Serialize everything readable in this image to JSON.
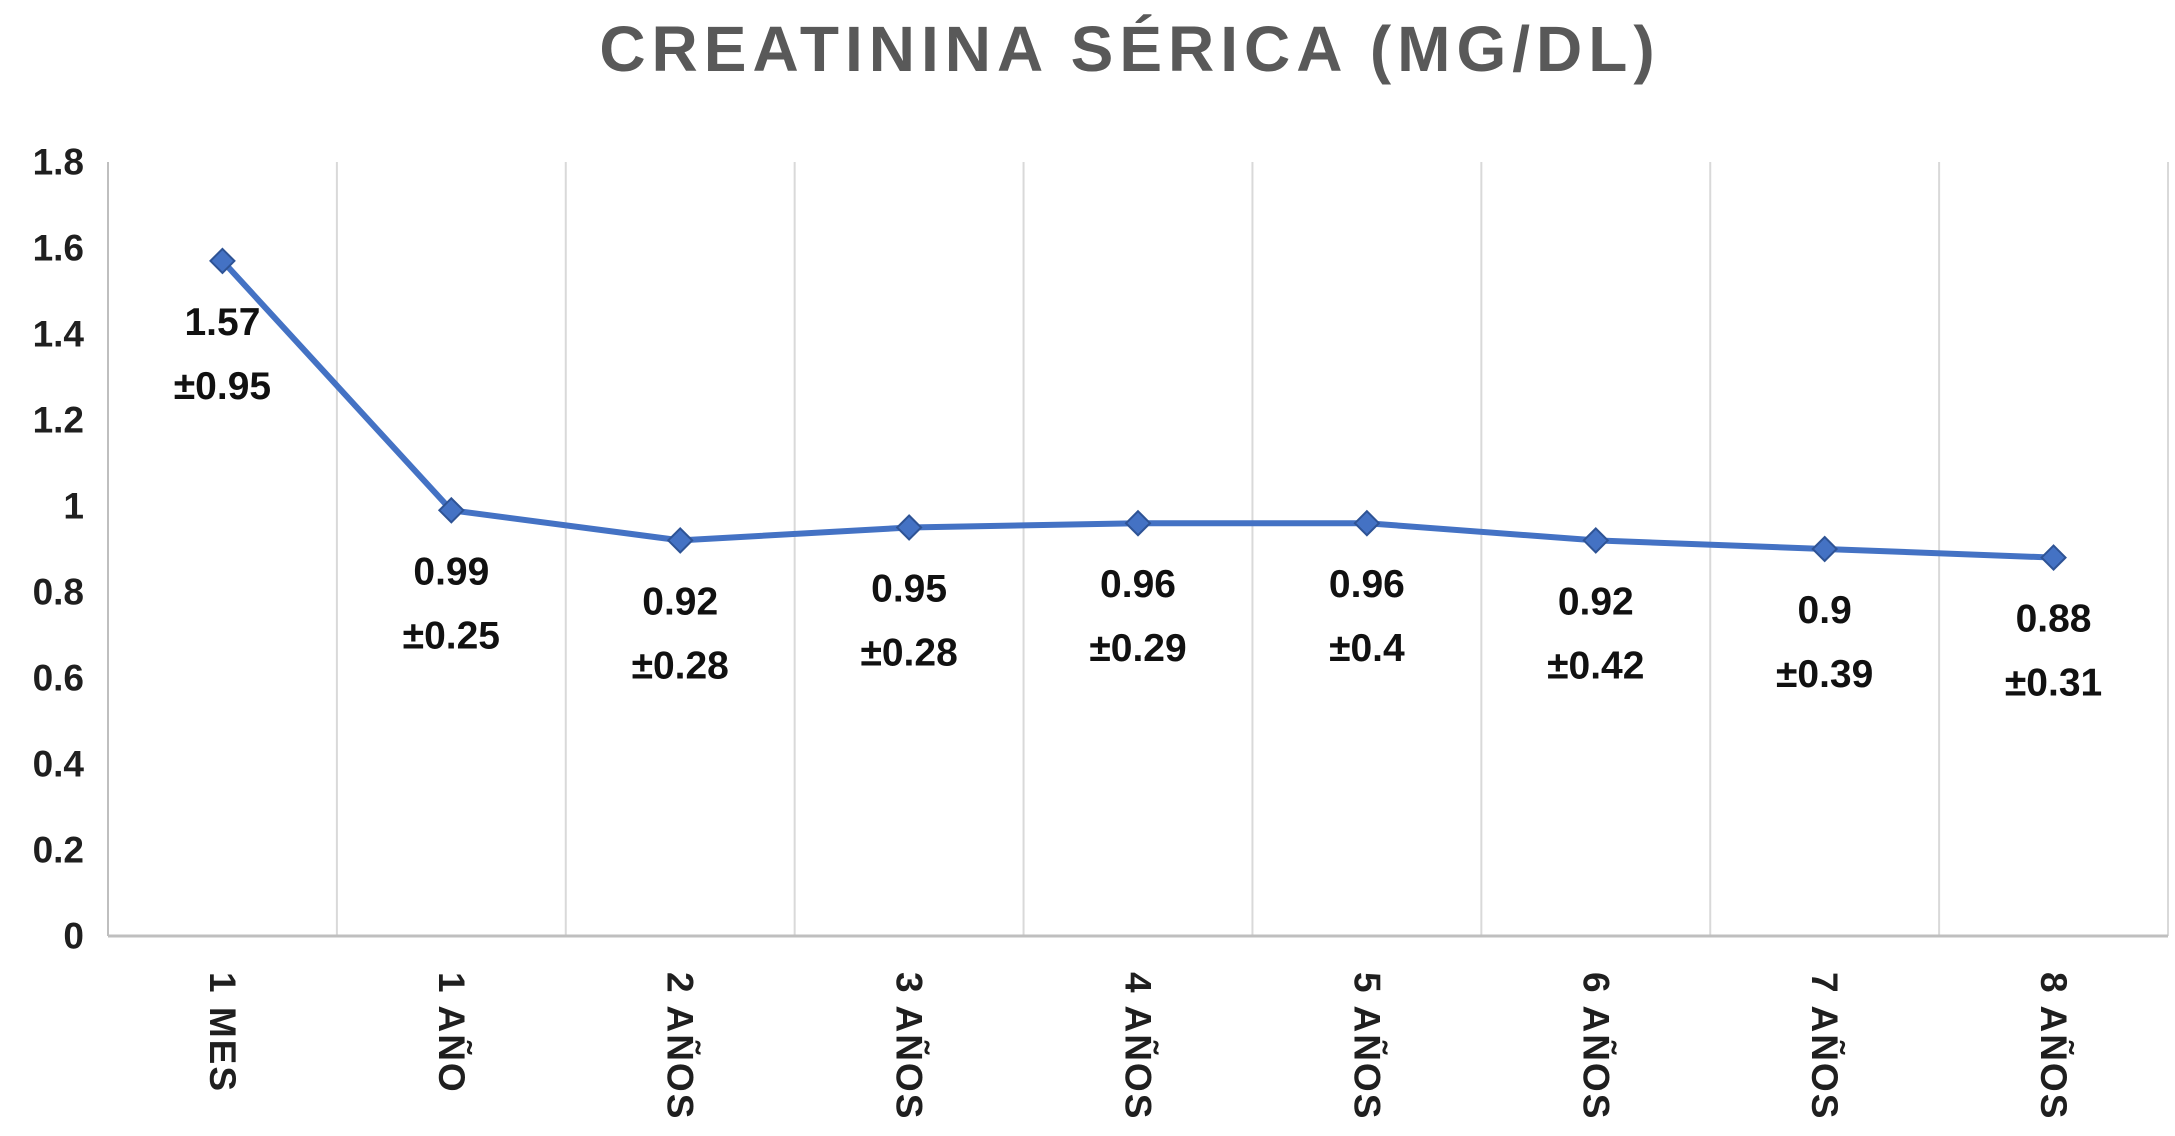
{
  "chart_data": {
    "type": "line",
    "title": "CREATININA SÉRICA (MG/DL)",
    "categories": [
      "1 MES",
      "1 AÑO",
      "2 AÑOS",
      "3 AÑOS",
      "4 AÑOS",
      "5 AÑOS",
      "6 AÑOS",
      "7 AÑOS",
      "8 AÑOS"
    ],
    "series": [
      {
        "name": "Creatinina sérica",
        "values": [
          1.57,
          0.99,
          0.92,
          0.95,
          0.96,
          0.96,
          0.92,
          0.9,
          0.88
        ],
        "sd": [
          0.95,
          0.25,
          0.28,
          0.28,
          0.29,
          0.4,
          0.42,
          0.39,
          0.31
        ]
      }
    ],
    "values": [
      1.57,
      0.99,
      0.92,
      0.95,
      0.96,
      0.96,
      0.92,
      0.9,
      0.88
    ],
    "point_labels": [
      [
        "1.57",
        "±0.95"
      ],
      [
        "0.99",
        "±0.25"
      ],
      [
        "0.92",
        "±0.28"
      ],
      [
        "0.95",
        "±0.28"
      ],
      [
        "0.96",
        "±0.29"
      ],
      [
        "0.96",
        "±0.4"
      ],
      [
        "0.92",
        "±0.42"
      ],
      [
        "0.9",
        "±0.39"
      ],
      [
        "0.88",
        "±0.31"
      ]
    ],
    "xlabel": "",
    "ylabel": "",
    "ylim": [
      0,
      1.8
    ],
    "y_ticks": [
      0,
      0.2,
      0.4,
      0.6,
      0.8,
      1,
      1.2,
      1.4,
      1.6,
      1.8
    ],
    "y_tick_labels": [
      "0",
      "0.2",
      "0.4",
      "0.6",
      "0.8",
      "1",
      "1.2",
      "1.4",
      "1.6",
      "1.8"
    ],
    "grid": "vertical-only",
    "legend": "none",
    "marker": "diamond",
    "x_label_rotation_deg": 90,
    "colors": {
      "line": "#4472C4",
      "marker": "#4472C4",
      "marker_border": "#2E5395",
      "grid": "#D9D9D9",
      "axis": "#BFBFBF",
      "title": "#595959",
      "label": "#111111"
    }
  }
}
